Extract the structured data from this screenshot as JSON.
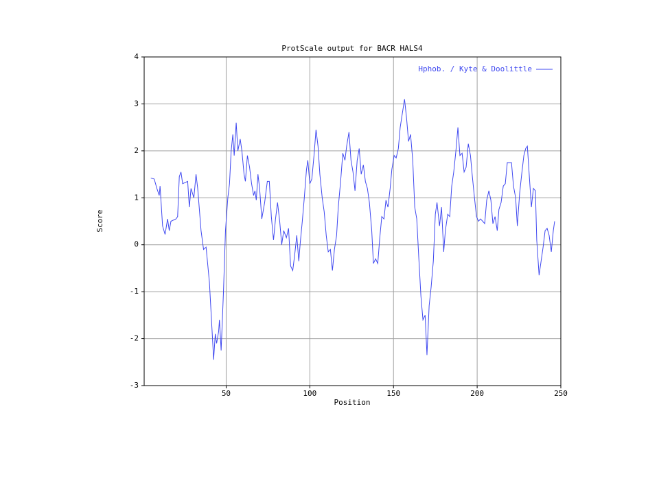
{
  "chart_data": {
    "type": "line",
    "title": "ProtScale output for BACR HALS4",
    "xlabel": "Position",
    "ylabel": "Score",
    "xlim": [
      1,
      250
    ],
    "xticks": [
      50,
      100,
      150,
      200,
      250
    ],
    "ylim": [
      -3,
      4
    ],
    "yticks": [
      -3,
      -2,
      -1,
      0,
      1,
      2,
      3,
      4
    ],
    "grid": true,
    "legend": "upper right",
    "x": [
      5,
      7,
      8.6,
      10,
      10.5,
      12,
      13.5,
      15,
      16,
      17,
      20,
      21,
      22,
      23,
      24,
      27,
      28,
      29,
      30.7,
      32,
      33,
      35,
      36.5,
      38,
      40,
      42,
      42.5,
      43.5,
      44.3,
      45.5,
      46,
      47,
      48.4,
      49.6,
      51,
      52,
      53,
      54,
      54.8,
      56,
      57,
      58.4,
      59.4,
      60.7,
      61.5,
      62.7,
      64,
      65.2,
      66.4,
      67.2,
      68,
      69,
      70,
      71.3,
      73,
      74.6,
      75.8,
      77,
      78.3,
      79.5,
      80.7,
      82,
      83.2,
      84.4,
      86,
      87.3,
      88.5,
      89.8,
      91,
      92.2,
      93.4,
      94.3,
      95.5,
      96.7,
      98,
      98.8,
      100,
      101.2,
      102.5,
      103.7,
      104.9,
      106,
      107.4,
      108.6,
      109.8,
      111,
      112.3,
      113.5,
      114.7,
      116,
      117,
      118.4,
      119.7,
      121,
      122,
      123.4,
      124.6,
      125.8,
      127,
      128.3,
      129.5,
      130.7,
      132,
      133.2,
      134.4,
      135.6,
      137,
      138,
      139.3,
      140.6,
      141.8,
      143,
      144.3,
      145.5,
      146.7,
      148,
      149,
      150.4,
      151.6,
      152.9,
      154,
      155.3,
      156.6,
      157.8,
      159,
      160.2,
      161.5,
      162.7,
      163.9,
      165,
      166.4,
      167.6,
      168.9,
      170,
      171.3,
      172.5,
      173.8,
      175,
      176,
      177.5,
      178.7,
      180,
      181,
      182.4,
      183.6,
      184.8,
      186,
      187.3,
      188.5,
      189.7,
      191,
      192.2,
      193.4,
      194.7,
      196,
      197,
      198.4,
      199.6,
      200.8,
      202,
      203.3,
      204.5,
      205.7,
      207,
      208.2,
      209.4,
      210.7,
      212,
      213,
      214.3,
      215.6,
      216.8,
      218,
      219,
      220.5,
      221.7,
      223,
      224,
      225.4,
      226.6,
      227.9,
      229,
      230,
      231,
      232.4,
      233.6,
      234.8,
      235.6,
      237,
      238,
      239.4,
      240.6,
      241.8,
      243,
      244.3,
      245.5,
      246.3
    ],
    "series": [
      {
        "name": "Hphob. / Kyte & Doolittle",
        "color": "#3f48f0",
        "values": [
          1.42,
          1.4,
          1.2,
          1.05,
          1.25,
          0.4,
          0.22,
          0.55,
          0.3,
          0.5,
          0.55,
          0.6,
          1.45,
          1.55,
          1.3,
          1.35,
          0.8,
          1.2,
          1.0,
          1.5,
          1.2,
          0.3,
          -0.1,
          -0.05,
          -0.8,
          -2.1,
          -2.45,
          -1.9,
          -2.1,
          -1.85,
          -1.6,
          -2.25,
          -1.0,
          0.3,
          1.0,
          1.3,
          2.0,
          2.35,
          1.9,
          2.6,
          2.0,
          2.25,
          2.0,
          1.5,
          1.35,
          1.9,
          1.65,
          1.3,
          1.05,
          1.15,
          0.95,
          1.5,
          1.2,
          0.55,
          0.9,
          1.35,
          1.35,
          0.6,
          0.1,
          0.55,
          0.9,
          0.5,
          0.0,
          0.3,
          0.15,
          0.35,
          -0.45,
          -0.55,
          -0.2,
          0.2,
          -0.35,
          0.05,
          0.5,
          1.0,
          1.6,
          1.8,
          1.3,
          1.4,
          1.9,
          2.45,
          2.1,
          1.5,
          1.0,
          0.7,
          0.2,
          -0.15,
          -0.1,
          -0.55,
          -0.1,
          0.2,
          0.8,
          1.35,
          1.95,
          1.8,
          2.1,
          2.4,
          1.8,
          1.55,
          1.15,
          1.8,
          2.05,
          1.5,
          1.7,
          1.35,
          1.2,
          0.9,
          0.3,
          -0.4,
          -0.3,
          -0.4,
          0.15,
          0.6,
          0.55,
          0.95,
          0.8,
          1.2,
          1.6,
          1.9,
          1.85,
          2.05,
          2.5,
          2.8,
          3.1,
          2.7,
          2.2,
          2.35,
          1.8,
          0.8,
          0.55,
          -0.2,
          -1.1,
          -1.6,
          -1.5,
          -2.35,
          -1.3,
          -0.9,
          -0.35,
          0.65,
          0.9,
          0.4,
          0.8,
          -0.15,
          0.3,
          0.65,
          0.6,
          1.25,
          1.55,
          2.0,
          2.5,
          1.9,
          1.95,
          1.55,
          1.65,
          2.15,
          1.9,
          1.5,
          1.0,
          0.6,
          0.5,
          0.55,
          0.5,
          0.45,
          0.95,
          1.15,
          0.95,
          0.45,
          0.6,
          0.3,
          0.75,
          0.9,
          1.25,
          1.3,
          1.75,
          1.75,
          1.75,
          1.25,
          1.0,
          0.4,
          1.1,
          1.5,
          1.9,
          2.05,
          2.1,
          1.55,
          0.8,
          1.2,
          1.15,
          0.1,
          -0.65,
          -0.4,
          -0.05,
          0.3,
          0.35,
          0.2,
          -0.15,
          0.3,
          0.5
        ]
      }
    ]
  }
}
